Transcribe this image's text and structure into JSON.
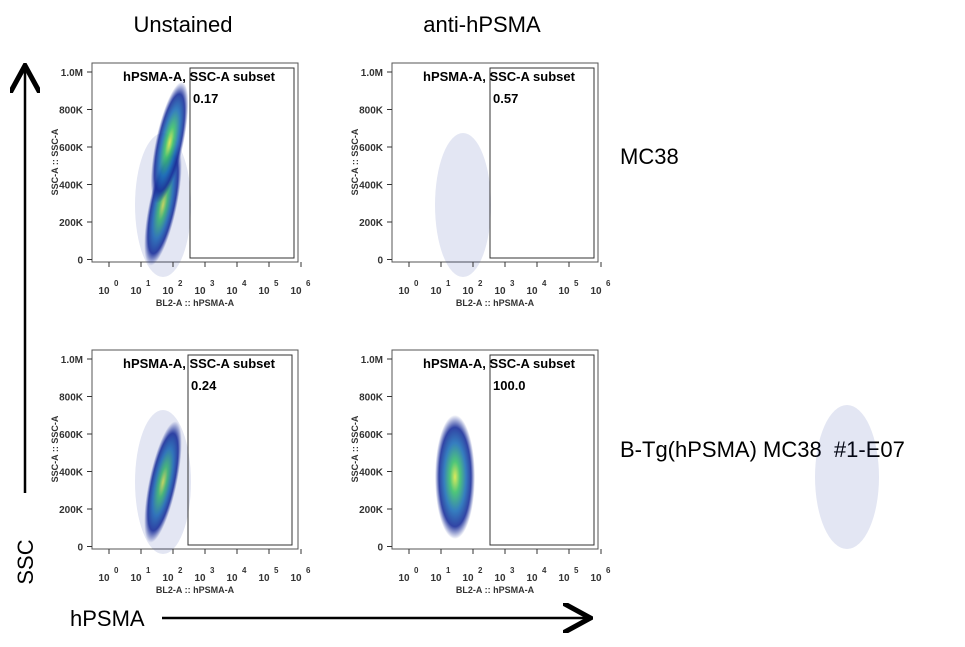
{
  "columns": [
    "Unstained",
    "anti-hPSMA"
  ],
  "rows": [
    "MC38",
    "B-Tg(hPSMA) MC38  #1-E07"
  ],
  "axes": {
    "y": "SSC",
    "x": "hPSMA"
  },
  "plot_axes": {
    "y_label": "SSC-A :: SSC-A",
    "x_label": "BL2-A :: hPSMA-A",
    "yticks": [
      "1.0M",
      "800K",
      "600K",
      "400K",
      "200K",
      "0"
    ],
    "xticks": [
      {
        "base": "10",
        "exp": "0"
      },
      {
        "base": "10",
        "exp": "1"
      },
      {
        "base": "10",
        "exp": "2"
      },
      {
        "base": "10",
        "exp": "3"
      },
      {
        "base": "10",
        "exp": "4"
      },
      {
        "base": "10",
        "exp": "5"
      },
      {
        "base": "10",
        "exp": "6"
      }
    ]
  },
  "panels": [
    {
      "gate": "hPSMA-A, SSC-A subset",
      "percent": "0.17"
    },
    {
      "gate": "hPSMA-A, SSC-A subset",
      "percent": "0.57"
    },
    {
      "gate": "hPSMA-A, SSC-A subset",
      "percent": "0.24"
    },
    {
      "gate": "hPSMA-A, SSC-A subset",
      "percent": "100.0"
    }
  ]
}
